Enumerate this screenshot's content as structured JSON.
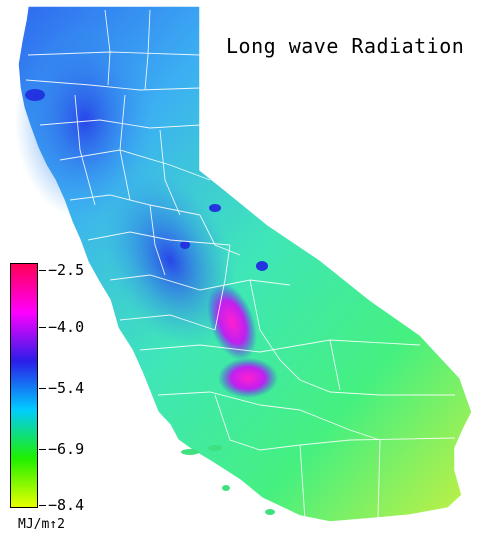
{
  "title": "Long wave Radiation",
  "legend": {
    "units": "MJ/m↑2",
    "ticks": [
      "−2.5",
      "−4.0",
      "−5.4",
      "−6.9",
      "−8.4"
    ],
    "colors": [
      "#ff0055",
      "#ff00ff",
      "#2a1ee8",
      "#00ccff",
      "#1ef000",
      "#e8ff00"
    ]
  },
  "map": {
    "region": "California",
    "colors": {
      "low_fill": "#3ff088",
      "mid_fill": "#39c8f0",
      "high_fill": "#2b55e8",
      "hotspot": "#ff20e8",
      "border": "#ffffff"
    }
  }
}
